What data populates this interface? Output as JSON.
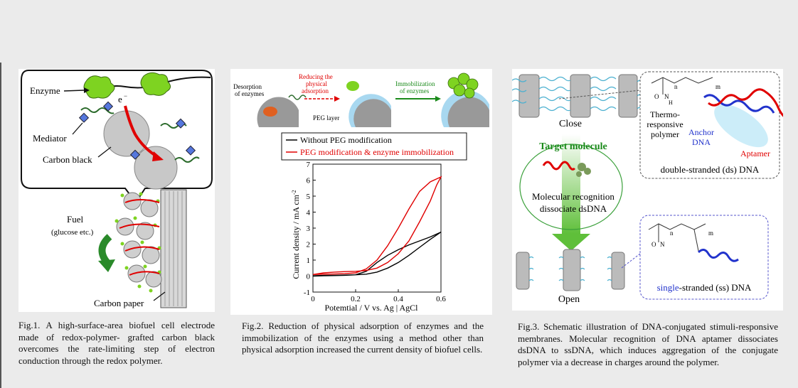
{
  "fig1": {
    "labels": {
      "enzyme": "Enzyme",
      "electron": "e",
      "electron_sup": "−",
      "mediator": "Mediator",
      "carbon_black": "Carbon black",
      "fuel": "Fuel",
      "fuel_sub": "(glucose etc.)",
      "carbon_paper": "Carbon paper"
    },
    "caption": "Fig.1. A high-surface-area biofuel cell electrode made of redox-polymer- grafted carbon black overcomes the rate-limiting step of electron conduction through the redox polymer."
  },
  "fig2": {
    "labels": {
      "desorption_1": "Desorption",
      "desorption_2": "of enzymes",
      "reducing_1": "Reducing the",
      "reducing_2": "physical",
      "reducing_3": "adsorption",
      "immobilization_1": "Immobilization",
      "immobilization_2": "of enzymes",
      "peg_layer": "PEG layer"
    },
    "caption": "Fig.2. Reduction of physical adsorption of enzymes and the immobilization of the enzymes using a method other than physical adsorption increased the current density of biofuel cells.",
    "chart_data": {
      "type": "line",
      "xlabel": "Potemtial / V vs. Ag | AgCl",
      "ylabel": "Current density / mA cm",
      "ylabel_sup": "-2",
      "xlim": [
        0,
        0.6
      ],
      "ylim": [
        -1,
        7
      ],
      "x_ticks": [
        "0",
        "0.2",
        "0.4",
        "0.6"
      ],
      "y_ticks": [
        "-1",
        "0",
        "1",
        "2",
        "3",
        "4",
        "5",
        "6",
        "7"
      ],
      "legend_position": "top",
      "series": [
        {
          "name": "Without PEG modification",
          "color": "#000000",
          "x": [
            0.0,
            0.05,
            0.1,
            0.15,
            0.2,
            0.25,
            0.3,
            0.35,
            0.4,
            0.45,
            0.5,
            0.55,
            0.6,
            0.55,
            0.5,
            0.45,
            0.4,
            0.35,
            0.3,
            0.25,
            0.2,
            0.15,
            0.1,
            0.05,
            0.0
          ],
          "y": [
            0.0,
            0.02,
            0.03,
            0.05,
            0.08,
            0.3,
            0.85,
            1.3,
            1.65,
            1.95,
            2.2,
            2.45,
            2.75,
            2.3,
            1.8,
            1.3,
            0.85,
            0.5,
            0.25,
            0.12,
            0.08,
            0.06,
            0.05,
            0.04,
            0.02
          ]
        },
        {
          "name": "PEG modification & enzyme immobilization",
          "color": "#e00000",
          "x": [
            0.0,
            0.05,
            0.1,
            0.15,
            0.2,
            0.25,
            0.3,
            0.35,
            0.4,
            0.45,
            0.5,
            0.55,
            0.6,
            0.58,
            0.55,
            0.5,
            0.45,
            0.4,
            0.35,
            0.3,
            0.25,
            0.2,
            0.15,
            0.1,
            0.05,
            0.0
          ],
          "y": [
            0.1,
            0.12,
            0.13,
            0.15,
            0.2,
            0.45,
            1.0,
            1.9,
            3.0,
            4.2,
            5.3,
            5.9,
            6.2,
            5.7,
            4.7,
            3.4,
            2.2,
            1.4,
            0.85,
            0.5,
            0.35,
            0.3,
            0.28,
            0.25,
            0.2,
            0.1
          ]
        }
      ]
    }
  },
  "fig3": {
    "labels": {
      "close": "Close",
      "open": "Open",
      "target_molecule": "Target molecule",
      "molecular_recognition": "Molecular recognition",
      "dissociate": "dissociate dsDNA",
      "thermo_1": "Thermo-",
      "thermo_2": "responsive",
      "thermo_3": "polymer",
      "anchor_1": "Anchor",
      "anchor_2": "DNA",
      "aptamer": "Aptamer",
      "ds_dna": "double-stranded (ds) DNA",
      "ss_prefix": "single",
      "ss_rest": "-stranded (ss) DNA",
      "chem_m": "m",
      "chem_n": "n",
      "chem_o": "O",
      "chem_nh": "N",
      "chem_h": "H"
    },
    "caption": "Fig.3. Schematic illustration of DNA-conjugated stimuli-responsive membranes. Molecular recognition of DNA aptamer dissociates dsDNA to ssDNA, which induces aggregation of the conjugate polymer via a decrease in charges around the polymer."
  },
  "colors": {
    "background": "#ebebeb",
    "red": "#e00000",
    "blue": "#2233cc",
    "green": "#1a8a1a",
    "enzyme_green": "#7ed321",
    "gray": "#c8c8c8",
    "cyan": "#88d8f0"
  }
}
